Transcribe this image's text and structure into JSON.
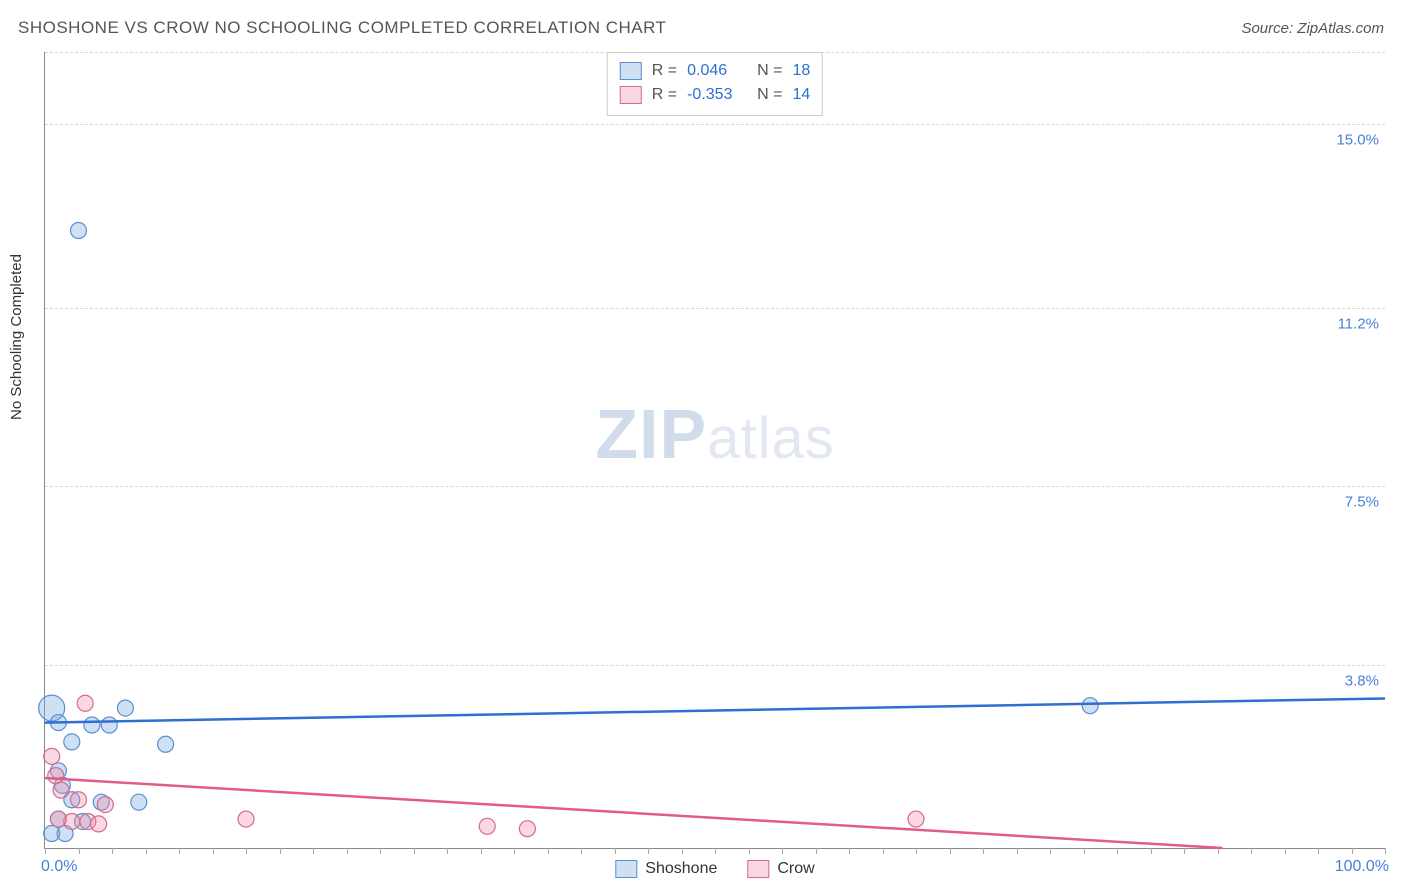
{
  "title": "SHOSHONE VS CROW NO SCHOOLING COMPLETED CORRELATION CHART",
  "source": "Source: ZipAtlas.com",
  "ylabel": "No Schooling Completed",
  "watermark_a": "ZIP",
  "watermark_b": "atlas",
  "chart": {
    "type": "scatter",
    "xlim": [
      0,
      100
    ],
    "ylim": [
      0,
      16.5
    ],
    "x_ticks_minor_step": 2.5,
    "x_axis_labels": {
      "start": "0.0%",
      "end": "100.0%"
    },
    "y_gridlines": [
      {
        "v": 3.8,
        "label": "3.8%"
      },
      {
        "v": 7.5,
        "label": "7.5%"
      },
      {
        "v": 11.2,
        "label": "11.2%"
      },
      {
        "v": 15.0,
        "label": "15.0%"
      }
    ],
    "background_color": "#ffffff",
    "grid_color": "#d8d8d8",
    "axis_color": "#888888",
    "label_color": "#4a7fd6",
    "series": [
      {
        "name": "Shoshone",
        "fill": "rgba(116,168,224,0.35)",
        "stroke": "#5a8fd0",
        "line_color": "#2e6fd0",
        "line_width": 2.5,
        "marker_r": 8,
        "R": "0.046",
        "N": "18",
        "trend": {
          "y_at_x0": 2.6,
          "y_at_x100": 3.1
        },
        "points": [
          {
            "x": 2.5,
            "y": 12.8
          },
          {
            "x": 0.5,
            "y": 2.9,
            "r": 13
          },
          {
            "x": 6.0,
            "y": 2.9
          },
          {
            "x": 1.0,
            "y": 2.6
          },
          {
            "x": 3.5,
            "y": 2.55
          },
          {
            "x": 4.8,
            "y": 2.55
          },
          {
            "x": 2.0,
            "y": 2.2
          },
          {
            "x": 9.0,
            "y": 2.15
          },
          {
            "x": 1.0,
            "y": 1.6
          },
          {
            "x": 1.3,
            "y": 1.3
          },
          {
            "x": 2.0,
            "y": 1.0
          },
          {
            "x": 4.2,
            "y": 0.95
          },
          {
            "x": 7.0,
            "y": 0.95
          },
          {
            "x": 1.0,
            "y": 0.6
          },
          {
            "x": 2.8,
            "y": 0.55
          },
          {
            "x": 0.5,
            "y": 0.3
          },
          {
            "x": 1.5,
            "y": 0.3
          },
          {
            "x": 78.0,
            "y": 2.95
          }
        ]
      },
      {
        "name": "Crow",
        "fill": "rgba(240,140,170,0.35)",
        "stroke": "#d46a8f",
        "line_color": "#e35b89",
        "line_width": 2.5,
        "marker_r": 8,
        "R": "-0.353",
        "N": "14",
        "trend": {
          "y_at_x0": 1.45,
          "y_at_x100": -0.2
        },
        "points": [
          {
            "x": 3.0,
            "y": 3.0
          },
          {
            "x": 0.5,
            "y": 1.9
          },
          {
            "x": 0.8,
            "y": 1.5
          },
          {
            "x": 1.2,
            "y": 1.2
          },
          {
            "x": 2.5,
            "y": 1.0
          },
          {
            "x": 4.5,
            "y": 0.9
          },
          {
            "x": 1.0,
            "y": 0.6
          },
          {
            "x": 2.0,
            "y": 0.55
          },
          {
            "x": 3.2,
            "y": 0.55
          },
          {
            "x": 4.0,
            "y": 0.5
          },
          {
            "x": 15.0,
            "y": 0.6
          },
          {
            "x": 33.0,
            "y": 0.45
          },
          {
            "x": 36.0,
            "y": 0.4
          },
          {
            "x": 65.0,
            "y": 0.6
          }
        ]
      }
    ],
    "legend_top": {
      "rows": [
        {
          "swatch": 0,
          "r_label": "R =",
          "n_label": "N ="
        },
        {
          "swatch": 1,
          "r_label": "R =",
          "n_label": "N ="
        }
      ]
    },
    "legend_bottom": [
      {
        "swatch": 0
      },
      {
        "swatch": 1
      }
    ]
  }
}
